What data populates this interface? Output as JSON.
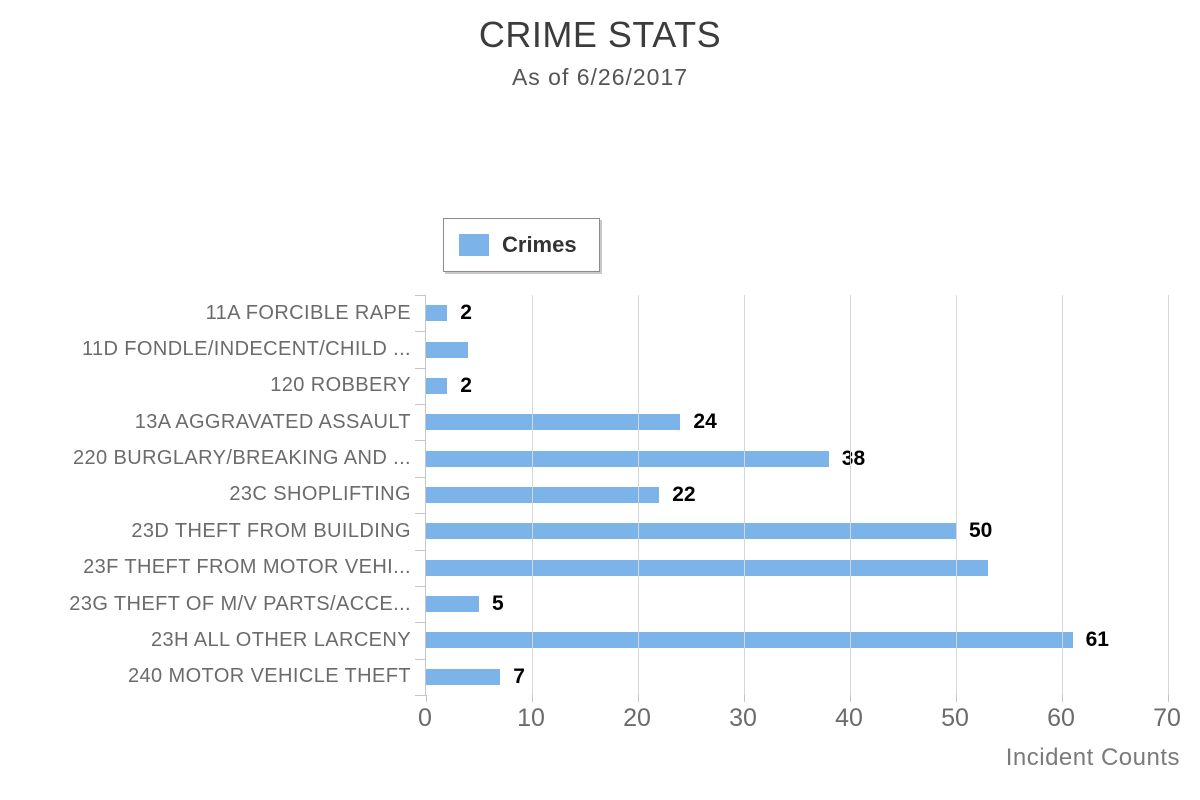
{
  "chart_data": {
    "type": "bar",
    "orientation": "horizontal",
    "title": "CRIME STATS",
    "subtitle": "As of 6/26/2017",
    "series_name": "Crimes",
    "categories": [
      "11A FORCIBLE RAPE",
      "11D FONDLE/INDECENT/CHILD ...",
      "120 ROBBERY",
      "13A AGGRAVATED ASSAULT",
      "220 BURGLARY/BREAKING AND ...",
      "23C SHOPLIFTING",
      "23D THEFT FROM BUILDING",
      "23F THEFT FROM MOTOR VEHI...",
      "23G THEFT OF M/V PARTS/ACCE...",
      "23H ALL OTHER LARCENY",
      "240 MOTOR VEHICLE THEFT"
    ],
    "values": [
      2,
      4,
      2,
      24,
      38,
      22,
      50,
      53,
      5,
      61,
      7
    ],
    "data_labels": [
      "2",
      "",
      "2",
      "24",
      "38",
      "22",
      "50",
      "",
      "5",
      "61",
      "7"
    ],
    "xlabel": "Incident Counts",
    "xlim": [
      0,
      70
    ],
    "xticks": [
      0,
      10,
      20,
      30,
      40,
      50,
      60,
      70
    ],
    "grid": true,
    "legend_position": "top-center",
    "bar_color": "#7cb3e8"
  },
  "colors": {
    "bar": "#7cb3e8",
    "title_text": "#3c3c3c",
    "subtitle_text": "#555555",
    "axis_text": "#6b6b6b",
    "grid_line": "#d6d6d6",
    "axis_line": "#c6c6c6",
    "data_label_text": "#000000",
    "legend_border": "#8c8c8c"
  }
}
